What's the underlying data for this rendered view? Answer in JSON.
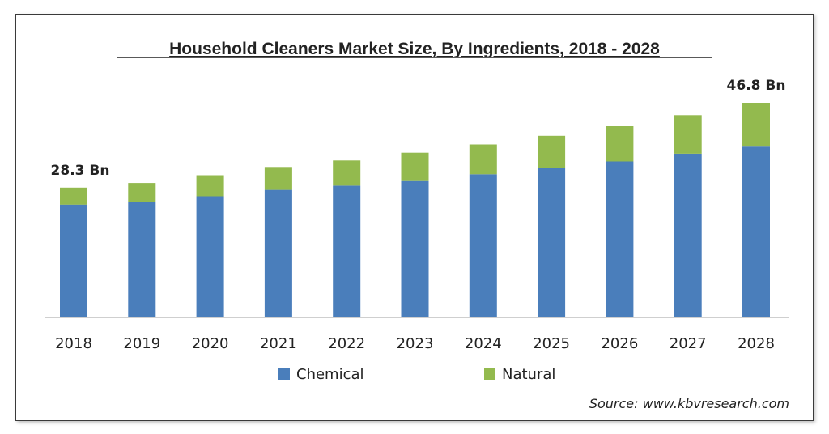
{
  "chart_data": {
    "type": "bar",
    "stacked": true,
    "title": "Household Cleaners Market Size, By Ingredients, 2018 - 2028",
    "categories": [
      "2018",
      "2019",
      "2020",
      "2021",
      "2022",
      "2023",
      "2024",
      "2025",
      "2026",
      "2027",
      "2028"
    ],
    "series": [
      {
        "name": "Chemical",
        "color": "#4a7ebb",
        "values": [
          24.6,
          25.1,
          26.4,
          27.8,
          28.7,
          29.9,
          31.2,
          32.6,
          34.0,
          35.7,
          37.4
        ]
      },
      {
        "name": "Natural",
        "color": "#93ba4e",
        "values": [
          3.7,
          4.2,
          4.6,
          5.0,
          5.5,
          6.0,
          6.5,
          7.0,
          7.7,
          8.4,
          9.4
        ]
      }
    ],
    "data_labels": [
      {
        "category": "2018",
        "text": "28.3 Bn"
      },
      {
        "category": "2028",
        "text": "46.8 Bn"
      }
    ],
    "ylim": [
      0,
      50
    ],
    "grid": false,
    "legend": "bottom",
    "source": "Source:  www.kbvresearch.com"
  }
}
